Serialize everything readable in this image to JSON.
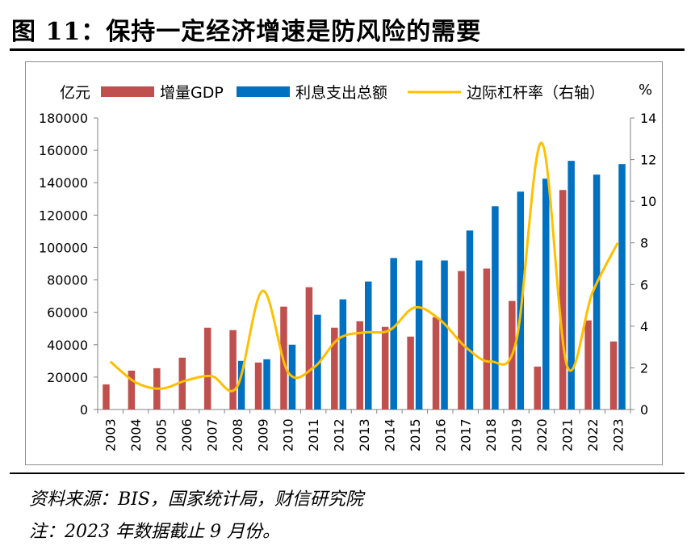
{
  "figure": {
    "title": "图 11：保持一定经济增速是防风险的需要",
    "source": "资料来源：BIS，国家统计局，财信研究院",
    "note": "注：2023 年数据截止 9 月份。"
  },
  "colors": {
    "gdp": "#c0504d",
    "interest": "#0070c0",
    "leverage": "#ffc000"
  },
  "chart_data": {
    "type": "bar",
    "x": [
      "2003",
      "2004",
      "2005",
      "2006",
      "2007",
      "2008",
      "2009",
      "2010",
      "2011",
      "2012",
      "2013",
      "2014",
      "2015",
      "2016",
      "2017",
      "2018",
      "2019",
      "2020",
      "2021",
      "2022",
      "2023"
    ],
    "series": [
      {
        "name": "增量GDP",
        "type": "bar",
        "axis": "left",
        "values": [
          15500,
          24000,
          25500,
          32000,
          50500,
          49000,
          29000,
          63500,
          75500,
          50500,
          54500,
          51000,
          45000,
          57000,
          85500,
          87000,
          67000,
          26500,
          135500,
          55000,
          42000
        ]
      },
      {
        "name": "利息支出总额",
        "type": "bar",
        "axis": "left",
        "values": [
          null,
          null,
          null,
          null,
          null,
          30000,
          31000,
          40000,
          58500,
          68000,
          79000,
          93500,
          92000,
          92000,
          110500,
          125500,
          134500,
          142500,
          153500,
          145000,
          151500
        ]
      },
      {
        "name": "边际杠杆率（右轴）",
        "type": "line",
        "axis": "right",
        "values": [
          2.3,
          1.3,
          1.0,
          1.4,
          1.6,
          1.1,
          5.7,
          1.8,
          2.0,
          3.4,
          3.7,
          3.8,
          4.9,
          4.3,
          3.0,
          2.3,
          3.3,
          12.8,
          2.1,
          5.6,
          8.0
        ]
      }
    ],
    "yleft": {
      "label": "亿元",
      "min": 0,
      "max": 180000,
      "ticks": [
        0,
        20000,
        40000,
        60000,
        80000,
        100000,
        120000,
        140000,
        160000,
        180000
      ]
    },
    "yright": {
      "label": "%",
      "min": 0,
      "max": 14,
      "ticks": [
        0,
        2,
        4,
        6,
        8,
        10,
        12,
        14
      ]
    },
    "legend": {
      "position": "top",
      "labels": [
        "增量GDP",
        "利息支出总额",
        "边际杠杆率（右轴）"
      ]
    },
    "grid": false
  }
}
